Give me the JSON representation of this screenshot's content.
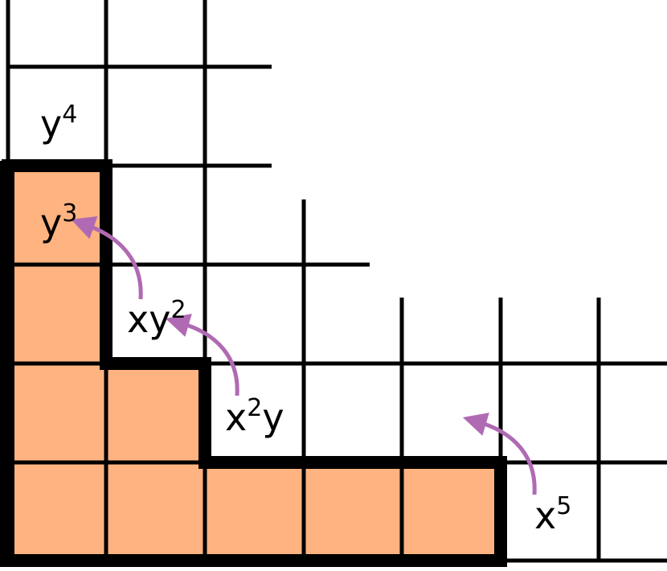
{
  "labels": [
    {
      "base": "y",
      "sup": "4"
    },
    {
      "base": "y",
      "sup": "3"
    },
    {
      "base": "xy",
      "sup": "2"
    },
    {
      "base": "x",
      "sup": "2",
      "tail": "y"
    },
    {
      "base": "x",
      "sup": "5"
    }
  ]
}
